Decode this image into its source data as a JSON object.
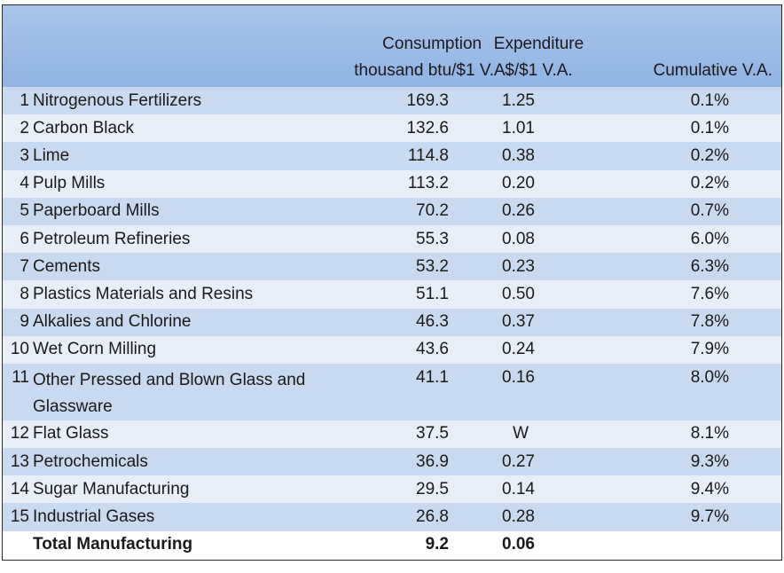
{
  "header": {
    "consumption_line1": "Consumption",
    "consumption_line2": "thousand btu/$1 V.A.",
    "expenditure_line1": "Expenditure",
    "expenditure_line2": "$/$1 V.A.",
    "cumulative": "Cumulative V.A."
  },
  "rows": [
    {
      "rank": "1",
      "name": "Nitrogenous Fertilizers",
      "consumption": "169.3",
      "expenditure": "1.25",
      "cumulative": "0.1%"
    },
    {
      "rank": "2",
      "name": "Carbon Black",
      "consumption": "132.6",
      "expenditure": "1.01",
      "cumulative": "0.1%"
    },
    {
      "rank": "3",
      "name": "Lime",
      "consumption": "114.8",
      "expenditure": "0.38",
      "cumulative": "0.2%"
    },
    {
      "rank": "4",
      "name": "Pulp Mills",
      "consumption": "113.2",
      "expenditure": "0.20",
      "cumulative": "0.2%"
    },
    {
      "rank": "5",
      "name": "Paperboard Mills",
      "consumption": "70.2",
      "expenditure": "0.26",
      "cumulative": "0.7%"
    },
    {
      "rank": "6",
      "name": "Petroleum Refineries",
      "consumption": "55.3",
      "expenditure": "0.08",
      "cumulative": "6.0%"
    },
    {
      "rank": "7",
      "name": "Cements",
      "consumption": "53.2",
      "expenditure": "0.23",
      "cumulative": "6.3%"
    },
    {
      "rank": "8",
      "name": "Plastics Materials and Resins",
      "consumption": "51.1",
      "expenditure": "0.50",
      "cumulative": "7.6%"
    },
    {
      "rank": "9",
      "name": "Alkalies and Chlorine",
      "consumption": "46.3",
      "expenditure": "0.37",
      "cumulative": "7.8%"
    },
    {
      "rank": "10",
      "name": "Wet Corn Milling",
      "consumption": "43.6",
      "expenditure": "0.24",
      "cumulative": "7.9%"
    },
    {
      "rank": "11",
      "name": "Other Pressed and Blown Glass and Glassware",
      "consumption": "41.1",
      "expenditure": "0.16",
      "cumulative": "8.0%"
    },
    {
      "rank": "12",
      "name": "Flat Glass",
      "consumption": "37.5",
      "expenditure": "W",
      "cumulative": "8.1%"
    },
    {
      "rank": "13",
      "name": "Petrochemicals",
      "consumption": "36.9",
      "expenditure": "0.27",
      "cumulative": "9.3%"
    },
    {
      "rank": "14",
      "name": "Sugar Manufacturing",
      "consumption": "29.5",
      "expenditure": "0.14",
      "cumulative": "9.4%"
    },
    {
      "rank": "15",
      "name": "Industrial Gases",
      "consumption": "26.8",
      "expenditure": "0.28",
      "cumulative": "9.7%"
    }
  ],
  "total": {
    "name": "Total Manufacturing",
    "consumption": "9.2",
    "expenditure": "0.06",
    "cumulative": ""
  },
  "colors": {
    "header_bg": "#9dbce6",
    "row_dark": "#c9d9ef",
    "row_light": "#e7eef8",
    "border": "#2b2b2b"
  }
}
